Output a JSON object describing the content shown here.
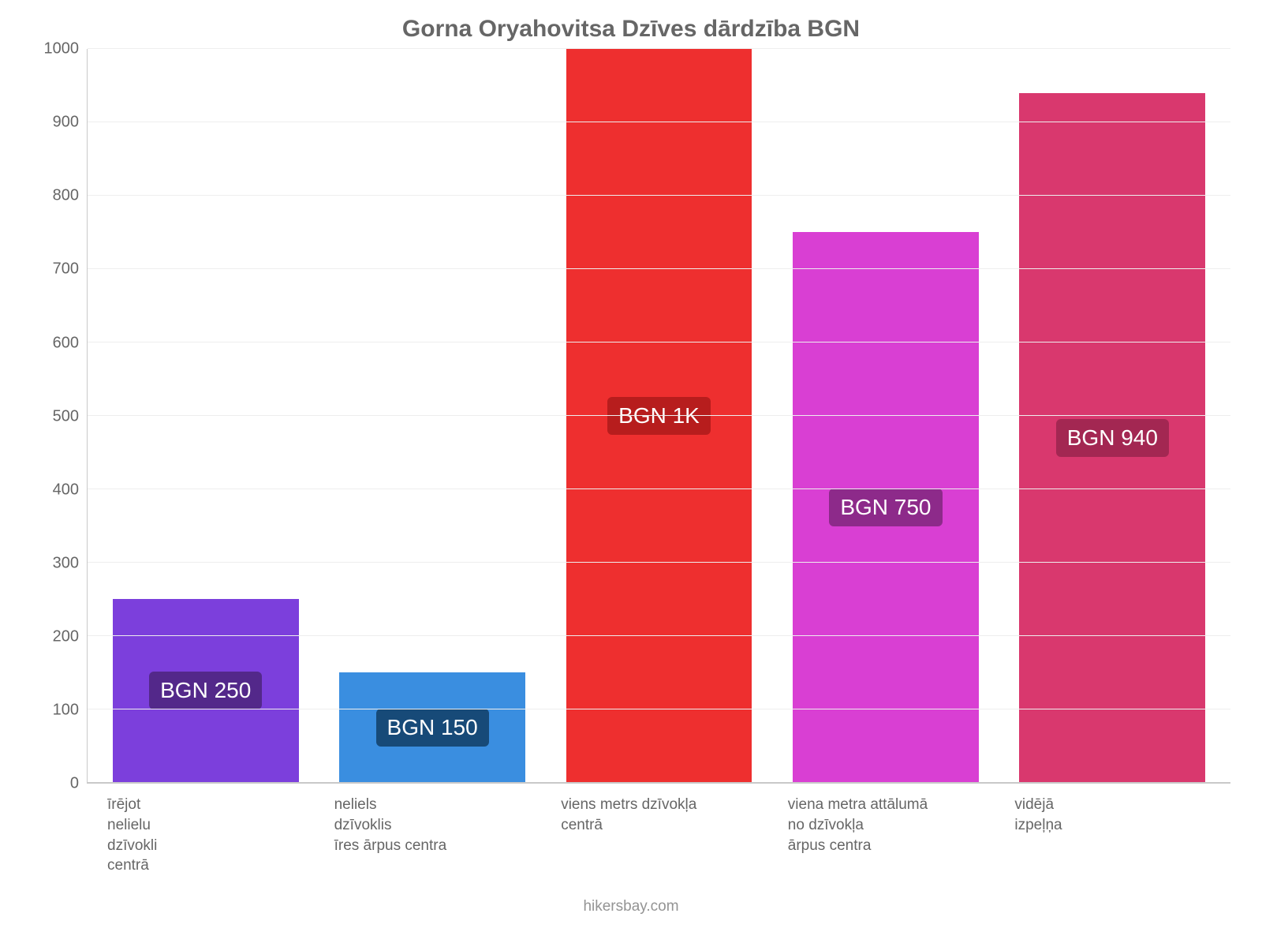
{
  "chart": {
    "type": "bar",
    "title": "Gorna Oryahovitsa Dzīves dārdzība BGN",
    "title_fontsize": 30,
    "title_color": "#666666",
    "background_color": "#ffffff",
    "grid_color": "#eeeeee",
    "axis_color": "#c9c9c9",
    "tick_color": "#666666",
    "tick_fontsize": 20,
    "xlabel_fontsize": 19,
    "xlabel_color": "#666666",
    "badge_fontsize": 28,
    "badge_text_color": "#ffffff",
    "ylim": [
      0,
      1000
    ],
    "ytick_step": 100,
    "yticks": [
      0,
      100,
      200,
      300,
      400,
      500,
      600,
      700,
      800,
      900,
      1000
    ],
    "bar_width": 0.82,
    "bars": [
      {
        "value": 250,
        "color": "#7c3fdc",
        "badge_bg": "#53288a",
        "badge_text": "BGN 250",
        "label_lines": [
          "īrējot",
          "nelielu",
          "dzīvokli",
          "centrā"
        ]
      },
      {
        "value": 150,
        "color": "#3a8ee0",
        "badge_bg": "#174a78",
        "badge_text": "BGN 150",
        "label_lines": [
          "neliels",
          "dzīvoklis",
          "īres ārpus centra"
        ]
      },
      {
        "value": 1000,
        "color": "#ee2f2f",
        "badge_bg": "#b71d1d",
        "badge_text": "BGN 1K",
        "label_lines": [
          "viens metrs dzīvokļa",
          "centrā"
        ]
      },
      {
        "value": 750,
        "color": "#d93fd3",
        "badge_bg": "#8d2a8a",
        "badge_text": "BGN 750",
        "label_lines": [
          "viena metra attālumā",
          "no dzīvokļa",
          "ārpus centra"
        ]
      },
      {
        "value": 940,
        "color": "#d9386e",
        "badge_bg": "#a32752",
        "badge_text": "BGN 940",
        "label_lines": [
          "vidējā",
          "izpeļņa"
        ]
      }
    ],
    "footer": "hikersbay.com",
    "footer_color": "#949494"
  }
}
